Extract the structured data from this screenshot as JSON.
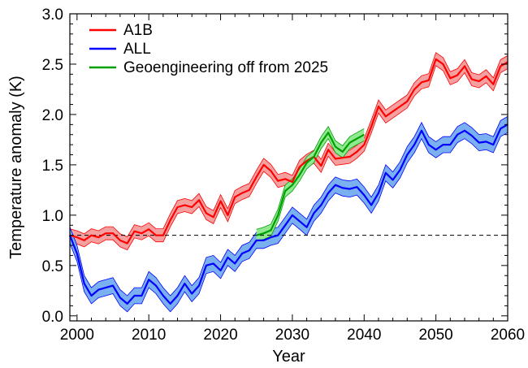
{
  "chart_data": {
    "type": "line",
    "title": "",
    "xlabel": "Year",
    "ylabel": "Temperature anomaly (K)",
    "xlim": [
      1999,
      2060
    ],
    "ylim": [
      -0.05,
      3.0
    ],
    "xticks": [
      2000,
      2010,
      2020,
      2030,
      2040,
      2050,
      2060
    ],
    "yticks": [
      0.0,
      0.5,
      1.0,
      1.5,
      2.0,
      2.5,
      3.0
    ],
    "xtick_labels": [
      "2000",
      "2010",
      "2020",
      "2030",
      "2040",
      "2050",
      "2060"
    ],
    "ytick_labels": [
      "0.0",
      "0.5",
      "1.0",
      "1.5",
      "2.0",
      "2.5",
      "3.0"
    ],
    "grid": false,
    "legend_position": "top-left",
    "reference_line": {
      "y": 0.8,
      "style": "dashed",
      "color": "#000000"
    },
    "series": [
      {
        "name": "A1B",
        "color": "#ff0000",
        "band_color": "#f4a0a0",
        "x": [
          1999,
          2000,
          2001,
          2002,
          2003,
          2004,
          2005,
          2006,
          2007,
          2008,
          2009,
          2010,
          2011,
          2012,
          2013,
          2014,
          2015,
          2016,
          2017,
          2018,
          2019,
          2020,
          2021,
          2022,
          2023,
          2024,
          2025,
          2026,
          2027,
          2028,
          2029,
          2030,
          2031,
          2032,
          2033,
          2034,
          2035,
          2036,
          2037,
          2038,
          2039,
          2040,
          2041,
          2042,
          2043,
          2044,
          2045,
          2046,
          2047,
          2048,
          2049,
          2050,
          2051,
          2052,
          2053,
          2054,
          2055,
          2056,
          2057,
          2058,
          2059,
          2060
        ],
        "y": [
          0.8,
          0.78,
          0.75,
          0.8,
          0.78,
          0.82,
          0.82,
          0.75,
          0.72,
          0.84,
          0.82,
          0.86,
          0.8,
          0.8,
          0.95,
          1.08,
          1.1,
          1.08,
          1.15,
          1.02,
          0.98,
          1.14,
          1.0,
          1.18,
          1.22,
          1.25,
          1.38,
          1.5,
          1.44,
          1.34,
          1.36,
          1.33,
          1.48,
          1.54,
          1.58,
          1.49,
          1.65,
          1.56,
          1.57,
          1.58,
          1.63,
          1.7,
          1.88,
          2.08,
          1.98,
          2.03,
          2.08,
          2.13,
          2.25,
          2.32,
          2.34,
          2.55,
          2.5,
          2.36,
          2.39,
          2.48,
          2.35,
          2.33,
          2.38,
          2.3,
          2.48,
          2.52
        ],
        "band_halfwidth": 0.065
      },
      {
        "name": "ALL",
        "color": "#0000ff",
        "band_color": "#7ab0f0",
        "x": [
          1999,
          2000,
          2001,
          2002,
          2003,
          2004,
          2005,
          2006,
          2007,
          2008,
          2009,
          2010,
          2011,
          2012,
          2013,
          2014,
          2015,
          2016,
          2017,
          2018,
          2019,
          2020,
          2021,
          2022,
          2023,
          2024,
          2025,
          2026,
          2027,
          2028,
          2029,
          2030,
          2031,
          2032,
          2033,
          2034,
          2035,
          2036,
          2037,
          2038,
          2039,
          2040,
          2041,
          2042,
          2043,
          2044,
          2045,
          2046,
          2047,
          2048,
          2049,
          2050,
          2051,
          2052,
          2053,
          2054,
          2055,
          2056,
          2057,
          2058,
          2059,
          2060
        ],
        "y": [
          0.8,
          0.62,
          0.32,
          0.2,
          0.26,
          0.28,
          0.3,
          0.18,
          0.12,
          0.2,
          0.2,
          0.36,
          0.3,
          0.2,
          0.12,
          0.2,
          0.32,
          0.22,
          0.3,
          0.5,
          0.52,
          0.45,
          0.58,
          0.52,
          0.62,
          0.65,
          0.75,
          0.75,
          0.78,
          0.8,
          0.9,
          1.0,
          0.94,
          0.88,
          1.02,
          1.1,
          1.22,
          1.3,
          1.27,
          1.26,
          1.28,
          1.2,
          1.1,
          1.22,
          1.42,
          1.35,
          1.45,
          1.6,
          1.7,
          1.84,
          1.7,
          1.65,
          1.7,
          1.7,
          1.8,
          1.84,
          1.79,
          1.72,
          1.73,
          1.7,
          1.86,
          1.9
        ],
        "band_halfwidth": 0.08
      },
      {
        "name": "Geoengineering off from 2025",
        "color": "#00a000",
        "band_color": "#90e890",
        "x": [
          2025,
          2026,
          2027,
          2028,
          2029,
          2030,
          2031,
          2032,
          2033,
          2034,
          2035,
          2036,
          2037,
          2038,
          2039,
          2040
        ],
        "y": [
          0.8,
          0.82,
          0.85,
          1.0,
          1.24,
          1.3,
          1.4,
          1.52,
          1.58,
          1.72,
          1.82,
          1.68,
          1.63,
          1.72,
          1.76,
          1.8
        ],
        "band_halfwidth": 0.06
      }
    ]
  }
}
